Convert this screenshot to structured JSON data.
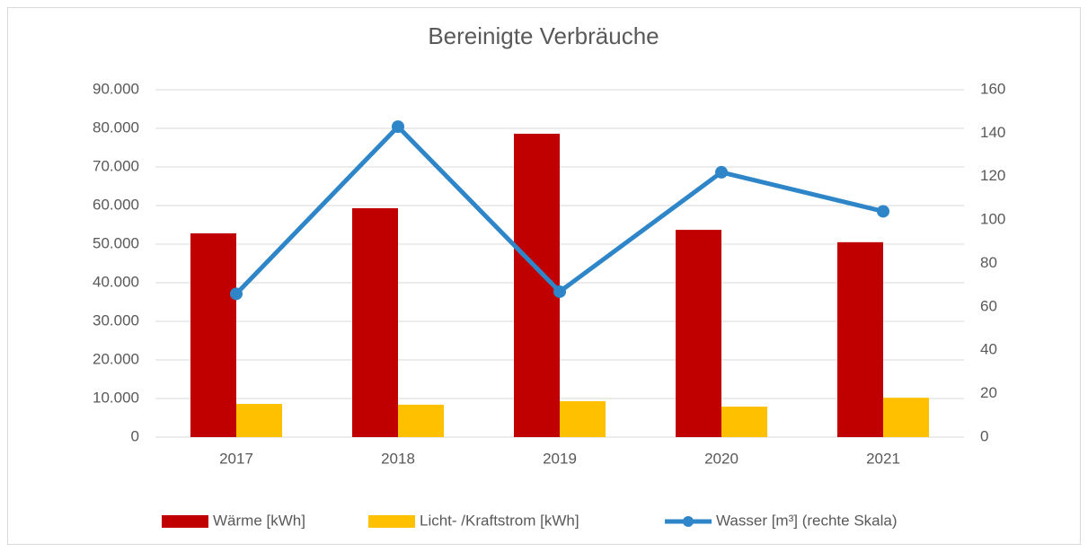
{
  "chart_data": {
    "type": "bar",
    "title": "Bereinigte Verbräuche",
    "categories": [
      "2017",
      "2018",
      "2019",
      "2020",
      "2021"
    ],
    "series": [
      {
        "name": "Wärme [kWh]",
        "color": "#c00000",
        "values": [
          52800,
          59300,
          78600,
          53700,
          50500
        ]
      },
      {
        "name": "Licht- /Kraftstrom [kWh]",
        "color": "#ffc000",
        "values": [
          8600,
          8400,
          9300,
          7900,
          10200
        ]
      },
      {
        "name": "Wasser [m³] (rechte Skala)",
        "color": "#2e86c8",
        "type": "line",
        "axis": "y2",
        "values": [
          66,
          143,
          67,
          122,
          104
        ]
      }
    ],
    "ylim": [
      0,
      90000
    ],
    "yticks": [
      0,
      {
        "value": 10000,
        "label": "10.000"
      },
      {
        "value": 20000,
        "label": "20.000"
      },
      {
        "value": 30000,
        "label": "30.000"
      },
      {
        "value": 40000,
        "label": "40.000"
      },
      {
        "value": 50000,
        "label": "50.000"
      },
      {
        "value": 60000,
        "label": "60.000"
      },
      {
        "value": 70000,
        "label": "70.000"
      },
      {
        "value": 80000,
        "label": "80.000"
      },
      {
        "value": 90000,
        "label": "90.000"
      }
    ],
    "y2lim": [
      0,
      160
    ],
    "y2ticks": [
      0,
      20,
      40,
      60,
      80,
      100,
      120,
      140,
      160
    ],
    "grid": true,
    "legend": "bottom"
  }
}
